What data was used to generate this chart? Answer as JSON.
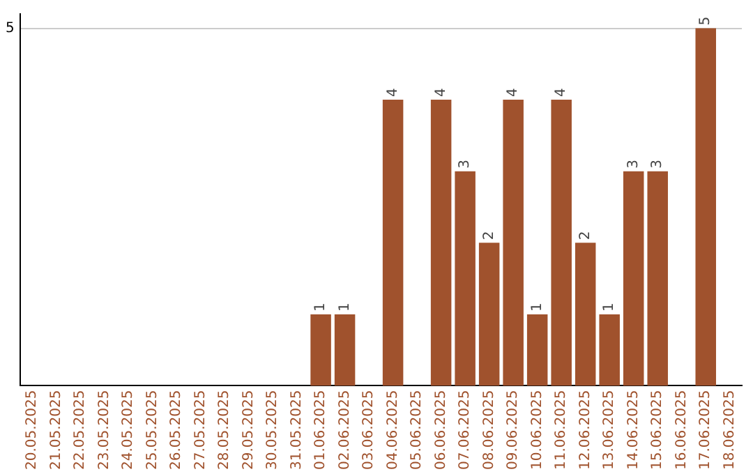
{
  "chart_data": {
    "type": "bar",
    "categories": [
      "20.05.2025",
      "21.05.2025",
      "22.05.2025",
      "23.05.2025",
      "24.05.2025",
      "25.05.2025",
      "26.05.2025",
      "27.05.2025",
      "28.05.2025",
      "29.05.2025",
      "30.05.2025",
      "31.05.2025",
      "01.06.2025",
      "02.06.2025",
      "03.06.2025",
      "04.06.2025",
      "05.06.2025",
      "06.06.2025",
      "07.06.2025",
      "08.06.2025",
      "09.06.2025",
      "10.06.2025",
      "11.06.2025",
      "12.06.2025",
      "13.06.2025",
      "14.06.2025",
      "15.06.2025",
      "16.06.2025",
      "17.06.2025",
      "18.06.2025"
    ],
    "values": [
      null,
      null,
      null,
      null,
      null,
      null,
      null,
      null,
      null,
      null,
      null,
      null,
      1,
      1,
      null,
      4,
      null,
      4,
      3,
      2,
      4,
      1,
      4,
      2,
      1,
      3,
      3,
      null,
      5,
      null
    ],
    "data_labels": true,
    "color": "#a0522d",
    "ylim": [
      0,
      5.2
    ],
    "yticks": [
      5
    ],
    "grid": "y",
    "legend": false
  }
}
